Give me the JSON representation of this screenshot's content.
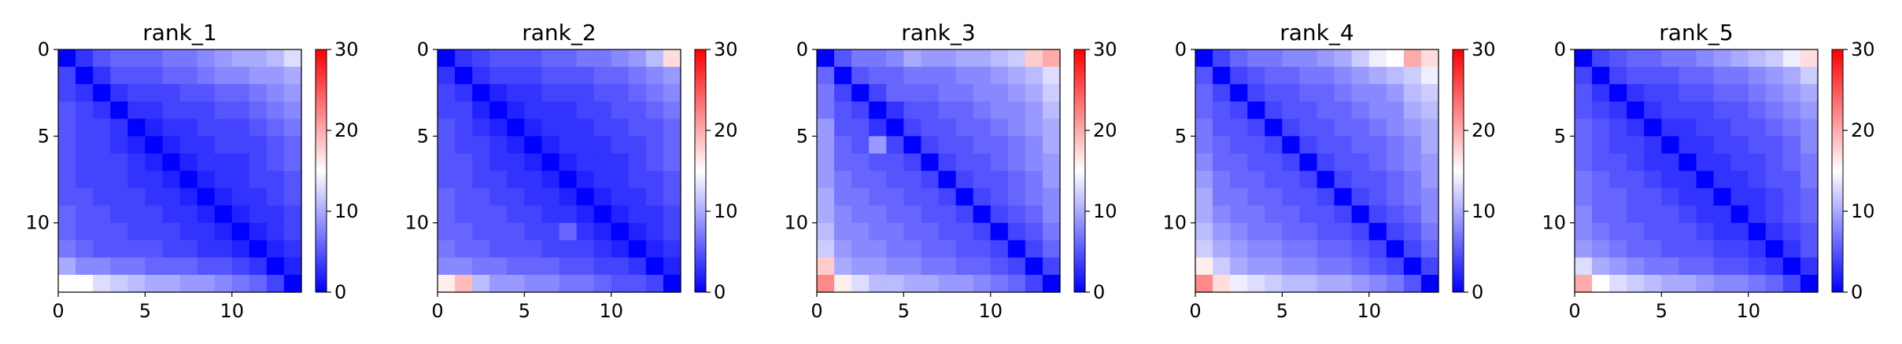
{
  "chart_data": [
    {
      "type": "heatmap",
      "title": "rank_1",
      "size": 14,
      "xticks": [
        0,
        5,
        10
      ],
      "yticks": [
        0,
        5,
        10
      ],
      "colorbar": {
        "min": 0,
        "max": 30,
        "ticks": [
          0,
          10,
          20,
          30
        ],
        "colormap": "bwr"
      },
      "values": [
        [
          0,
          3,
          5,
          6,
          6,
          6,
          7,
          7,
          8,
          9,
          10,
          10,
          11,
          13
        ],
        [
          4,
          0,
          3,
          5,
          5,
          5,
          6,
          6,
          7,
          8,
          8,
          9,
          9,
          10
        ],
        [
          4,
          3,
          0,
          3,
          4,
          4,
          4,
          5,
          5,
          6,
          6,
          7,
          8,
          9
        ],
        [
          5,
          4,
          3,
          0,
          3,
          3,
          4,
          4,
          4,
          5,
          5,
          6,
          7,
          8
        ],
        [
          5,
          4,
          4,
          3,
          0,
          2,
          3,
          3,
          4,
          4,
          4,
          5,
          6,
          7
        ],
        [
          5,
          4,
          4,
          3,
          2,
          0,
          2,
          3,
          3,
          4,
          4,
          4,
          5,
          6
        ],
        [
          5,
          4,
          4,
          4,
          3,
          2,
          0,
          2,
          3,
          3,
          3,
          4,
          5,
          6
        ],
        [
          5,
          4,
          4,
          4,
          3,
          3,
          2,
          0,
          2,
          3,
          3,
          4,
          4,
          5
        ],
        [
          5,
          5,
          4,
          4,
          4,
          3,
          3,
          2,
          0,
          2,
          3,
          3,
          4,
          5
        ],
        [
          6,
          5,
          5,
          4,
          4,
          4,
          3,
          3,
          2,
          0,
          2,
          3,
          3,
          4
        ],
        [
          6,
          5,
          5,
          5,
          4,
          4,
          4,
          3,
          3,
          2,
          0,
          2,
          3,
          4
        ],
        [
          7,
          6,
          5,
          5,
          5,
          5,
          4,
          4,
          3,
          3,
          2,
          0,
          2,
          3
        ],
        [
          10,
          8,
          8,
          7,
          7,
          6,
          6,
          6,
          5,
          5,
          4,
          3,
          0,
          2
        ],
        [
          15,
          15,
          13,
          12,
          11,
          10,
          10,
          9,
          9,
          8,
          7,
          6,
          4,
          0
        ]
      ]
    },
    {
      "type": "heatmap",
      "title": "rank_2",
      "size": 14,
      "xticks": [
        0,
        5,
        10
      ],
      "yticks": [
        0,
        5,
        10
      ],
      "colorbar": {
        "min": 0,
        "max": 30,
        "ticks": [
          0,
          10,
          20,
          30
        ],
        "colormap": "bwr"
      },
      "values": [
        [
          0,
          3,
          4,
          5,
          5,
          5,
          6,
          6,
          7,
          7,
          8,
          9,
          11,
          17
        ],
        [
          3,
          0,
          3,
          4,
          4,
          4,
          5,
          5,
          5,
          6,
          6,
          7,
          8,
          9
        ],
        [
          4,
          3,
          0,
          2,
          3,
          3,
          4,
          4,
          4,
          5,
          5,
          6,
          7,
          8
        ],
        [
          4,
          4,
          2,
          0,
          2,
          3,
          3,
          3,
          4,
          4,
          5,
          5,
          6,
          7
        ],
        [
          5,
          4,
          3,
          2,
          0,
          2,
          3,
          3,
          3,
          4,
          4,
          5,
          5,
          6
        ],
        [
          5,
          4,
          4,
          3,
          2,
          0,
          2,
          3,
          3,
          3,
          4,
          4,
          5,
          6
        ],
        [
          5,
          5,
          4,
          3,
          3,
          2,
          0,
          2,
          3,
          3,
          3,
          4,
          5,
          6
        ],
        [
          5,
          5,
          4,
          4,
          3,
          3,
          2,
          0,
          2,
          3,
          3,
          4,
          4,
          5
        ],
        [
          6,
          5,
          5,
          4,
          4,
          3,
          3,
          2,
          0,
          2,
          3,
          3,
          4,
          5
        ],
        [
          6,
          5,
          5,
          5,
          4,
          4,
          3,
          3,
          2,
          0,
          2,
          3,
          3,
          4
        ],
        [
          6,
          6,
          5,
          5,
          5,
          4,
          4,
          6,
          3,
          2,
          0,
          2,
          3,
          4
        ],
        [
          7,
          6,
          6,
          5,
          5,
          5,
          4,
          4,
          4,
          3,
          2,
          0,
          2,
          3
        ],
        [
          8,
          8,
          7,
          7,
          6,
          6,
          6,
          5,
          5,
          4,
          4,
          3,
          0,
          2
        ],
        [
          16,
          19,
          11,
          9,
          9,
          8,
          8,
          7,
          7,
          6,
          5,
          5,
          4,
          0
        ]
      ]
    },
    {
      "type": "heatmap",
      "title": "rank_3",
      "size": 14,
      "xticks": [
        0,
        5,
        10
      ],
      "yticks": [
        0,
        5,
        10
      ],
      "colorbar": {
        "min": 0,
        "max": 30,
        "ticks": [
          0,
          10,
          20,
          30
        ],
        "colormap": "bwr"
      },
      "values": [
        [
          0,
          5,
          7,
          7,
          8,
          10,
          9,
          9,
          10,
          10,
          11,
          12,
          18,
          20
        ],
        [
          6,
          0,
          5,
          6,
          6,
          7,
          7,
          7,
          8,
          8,
          9,
          10,
          11,
          13
        ],
        [
          7,
          4,
          0,
          4,
          6,
          6,
          6,
          7,
          7,
          8,
          8,
          9,
          10,
          12
        ],
        [
          7,
          5,
          4,
          0,
          3,
          5,
          5,
          6,
          6,
          7,
          8,
          8,
          9,
          11
        ],
        [
          9,
          5,
          5,
          3,
          0,
          4,
          5,
          5,
          6,
          6,
          7,
          8,
          9,
          10
        ],
        [
          9,
          6,
          5,
          9,
          4,
          0,
          4,
          5,
          5,
          6,
          6,
          7,
          8,
          10
        ],
        [
          9,
          6,
          6,
          5,
          5,
          4,
          0,
          4,
          5,
          5,
          6,
          7,
          8,
          9
        ],
        [
          9,
          7,
          6,
          6,
          5,
          5,
          4,
          0,
          4,
          5,
          5,
          6,
          7,
          9
        ],
        [
          10,
          7,
          7,
          6,
          6,
          5,
          5,
          4,
          0,
          4,
          5,
          6,
          7,
          8
        ],
        [
          10,
          8,
          7,
          7,
          6,
          6,
          5,
          5,
          4,
          0,
          4,
          5,
          6,
          8
        ],
        [
          11,
          8,
          8,
          7,
          7,
          6,
          6,
          5,
          5,
          4,
          0,
          4,
          5,
          7
        ],
        [
          12,
          9,
          8,
          8,
          7,
          7,
          6,
          6,
          5,
          5,
          4,
          0,
          4,
          6
        ],
        [
          18,
          10,
          9,
          9,
          8,
          8,
          7,
          7,
          6,
          6,
          5,
          4,
          0,
          4
        ],
        [
          22,
          16,
          13,
          11,
          11,
          10,
          10,
          9,
          9,
          8,
          7,
          6,
          4,
          0
        ]
      ]
    },
    {
      "type": "heatmap",
      "title": "rank_4",
      "size": 14,
      "xticks": [
        0,
        5,
        10
      ],
      "yticks": [
        0,
        5,
        10
      ],
      "colorbar": {
        "min": 0,
        "max": 30,
        "ticks": [
          0,
          10,
          20,
          30
        ],
        "colormap": "bwr"
      },
      "values": [
        [
          0,
          4,
          6,
          7,
          7,
          8,
          8,
          9,
          10,
          12,
          14,
          15,
          20,
          17
        ],
        [
          5,
          0,
          4,
          5,
          6,
          6,
          7,
          7,
          8,
          9,
          10,
          11,
          12,
          14
        ],
        [
          6,
          4,
          0,
          4,
          5,
          5,
          6,
          6,
          7,
          8,
          8,
          9,
          11,
          12
        ],
        [
          6,
          5,
          4,
          0,
          4,
          5,
          5,
          6,
          6,
          7,
          8,
          8,
          10,
          11
        ],
        [
          7,
          5,
          5,
          4,
          0,
          4,
          5,
          5,
          6,
          6,
          7,
          8,
          9,
          10
        ],
        [
          7,
          6,
          5,
          5,
          4,
          0,
          4,
          5,
          5,
          6,
          6,
          7,
          8,
          10
        ],
        [
          8,
          6,
          6,
          5,
          5,
          4,
          0,
          4,
          5,
          5,
          6,
          7,
          8,
          9
        ],
        [
          9,
          7,
          6,
          6,
          5,
          5,
          4,
          0,
          4,
          5,
          5,
          6,
          7,
          9
        ],
        [
          10,
          7,
          7,
          6,
          6,
          5,
          5,
          4,
          0,
          4,
          5,
          6,
          7,
          8
        ],
        [
          10,
          8,
          7,
          7,
          6,
          6,
          5,
          5,
          4,
          0,
          4,
          5,
          6,
          8
        ],
        [
          11,
          9,
          8,
          7,
          7,
          6,
          6,
          5,
          5,
          4,
          0,
          4,
          5,
          7
        ],
        [
          12,
          10,
          9,
          8,
          8,
          7,
          7,
          6,
          6,
          5,
          4,
          0,
          4,
          6
        ],
        [
          16,
          12,
          10,
          9,
          9,
          8,
          8,
          7,
          7,
          6,
          5,
          4,
          0,
          4
        ],
        [
          22,
          17,
          14,
          13,
          12,
          11,
          11,
          10,
          10,
          9,
          8,
          7,
          5,
          0
        ]
      ]
    },
    {
      "type": "heatmap",
      "title": "rank_5",
      "size": 14,
      "xticks": [
        0,
        5,
        10
      ],
      "yticks": [
        0,
        5,
        10
      ],
      "colorbar": {
        "min": 0,
        "max": 30,
        "ticks": [
          0,
          10,
          20,
          30
        ],
        "colormap": "bwr"
      },
      "values": [
        [
          0,
          4,
          5,
          6,
          6,
          7,
          7,
          8,
          9,
          10,
          11,
          12,
          14,
          17
        ],
        [
          4,
          0,
          4,
          5,
          5,
          5,
          6,
          6,
          7,
          7,
          8,
          9,
          10,
          12
        ],
        [
          5,
          3,
          0,
          3,
          4,
          4,
          5,
          5,
          6,
          6,
          7,
          8,
          9,
          10
        ],
        [
          5,
          4,
          3,
          0,
          3,
          4,
          4,
          4,
          5,
          5,
          6,
          7,
          8,
          9
        ],
        [
          6,
          5,
          4,
          3,
          0,
          3,
          3,
          4,
          4,
          5,
          5,
          6,
          7,
          8
        ],
        [
          6,
          5,
          4,
          4,
          3,
          0,
          3,
          3,
          4,
          4,
          5,
          5,
          6,
          8
        ],
        [
          6,
          5,
          5,
          4,
          3,
          3,
          0,
          3,
          3,
          4,
          4,
          5,
          6,
          7
        ],
        [
          7,
          6,
          5,
          5,
          4,
          3,
          3,
          0,
          3,
          3,
          4,
          5,
          5,
          7
        ],
        [
          7,
          6,
          6,
          5,
          5,
          4,
          3,
          3,
          0,
          3,
          3,
          4,
          5,
          6
        ],
        [
          8,
          6,
          6,
          5,
          5,
          5,
          4,
          3,
          3,
          0,
          3,
          4,
          5,
          6
        ],
        [
          8,
          7,
          6,
          6,
          5,
          5,
          5,
          4,
          3,
          3,
          0,
          3,
          4,
          5
        ],
        [
          9,
          8,
          7,
          6,
          6,
          5,
          5,
          5,
          4,
          4,
          3,
          0,
          3,
          5
        ],
        [
          13,
          10,
          9,
          8,
          7,
          7,
          6,
          6,
          5,
          5,
          4,
          3,
          0,
          3
        ],
        [
          20,
          15,
          13,
          12,
          11,
          10,
          10,
          9,
          8,
          8,
          7,
          6,
          4,
          0
        ]
      ]
    }
  ]
}
